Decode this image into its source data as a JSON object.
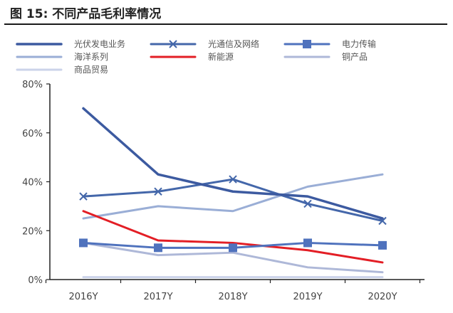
{
  "figure": {
    "title": "图 15:    不同产品毛利率情况"
  },
  "chart_data": {
    "type": "line",
    "categories": [
      "2016Y",
      "2017Y",
      "2018Y",
      "2019Y",
      "2020Y"
    ],
    "ylim": [
      0,
      80
    ],
    "yticks": [
      "0%",
      "20%",
      "40%",
      "60%",
      "80%"
    ],
    "y_unit": "%",
    "grid": false,
    "legend_position": "top",
    "series": [
      {
        "name": "光伏发电业务",
        "color": "#3c5aa0",
        "marker": "none",
        "width": 3.5,
        "values": [
          70,
          43,
          36,
          34,
          25
        ]
      },
      {
        "name": "光通信及网络",
        "color": "#4467aa",
        "marker": "x",
        "width": 3,
        "values": [
          34,
          36,
          41,
          31,
          24
        ]
      },
      {
        "name": "电力传输",
        "color": "#4f72bd",
        "marker": "square",
        "width": 3,
        "values": [
          15,
          13,
          13,
          15,
          14
        ]
      },
      {
        "name": "海洋系列",
        "color": "#9aaed6",
        "marker": "none",
        "width": 3,
        "values": [
          25,
          30,
          28,
          38,
          43
        ]
      },
      {
        "name": "新能源",
        "color": "#e31e25",
        "marker": "none",
        "width": 3,
        "values": [
          28,
          16,
          15,
          12,
          7
        ]
      },
      {
        "name": "铜产品",
        "color": "#aeb8d8",
        "marker": "none",
        "width": 3,
        "values": [
          15,
          10,
          11,
          5,
          3
        ]
      },
      {
        "name": "商品贸易",
        "color": "#cbd3ea",
        "marker": "none",
        "width": 3,
        "values": [
          1,
          1,
          1,
          1,
          1
        ]
      }
    ]
  }
}
